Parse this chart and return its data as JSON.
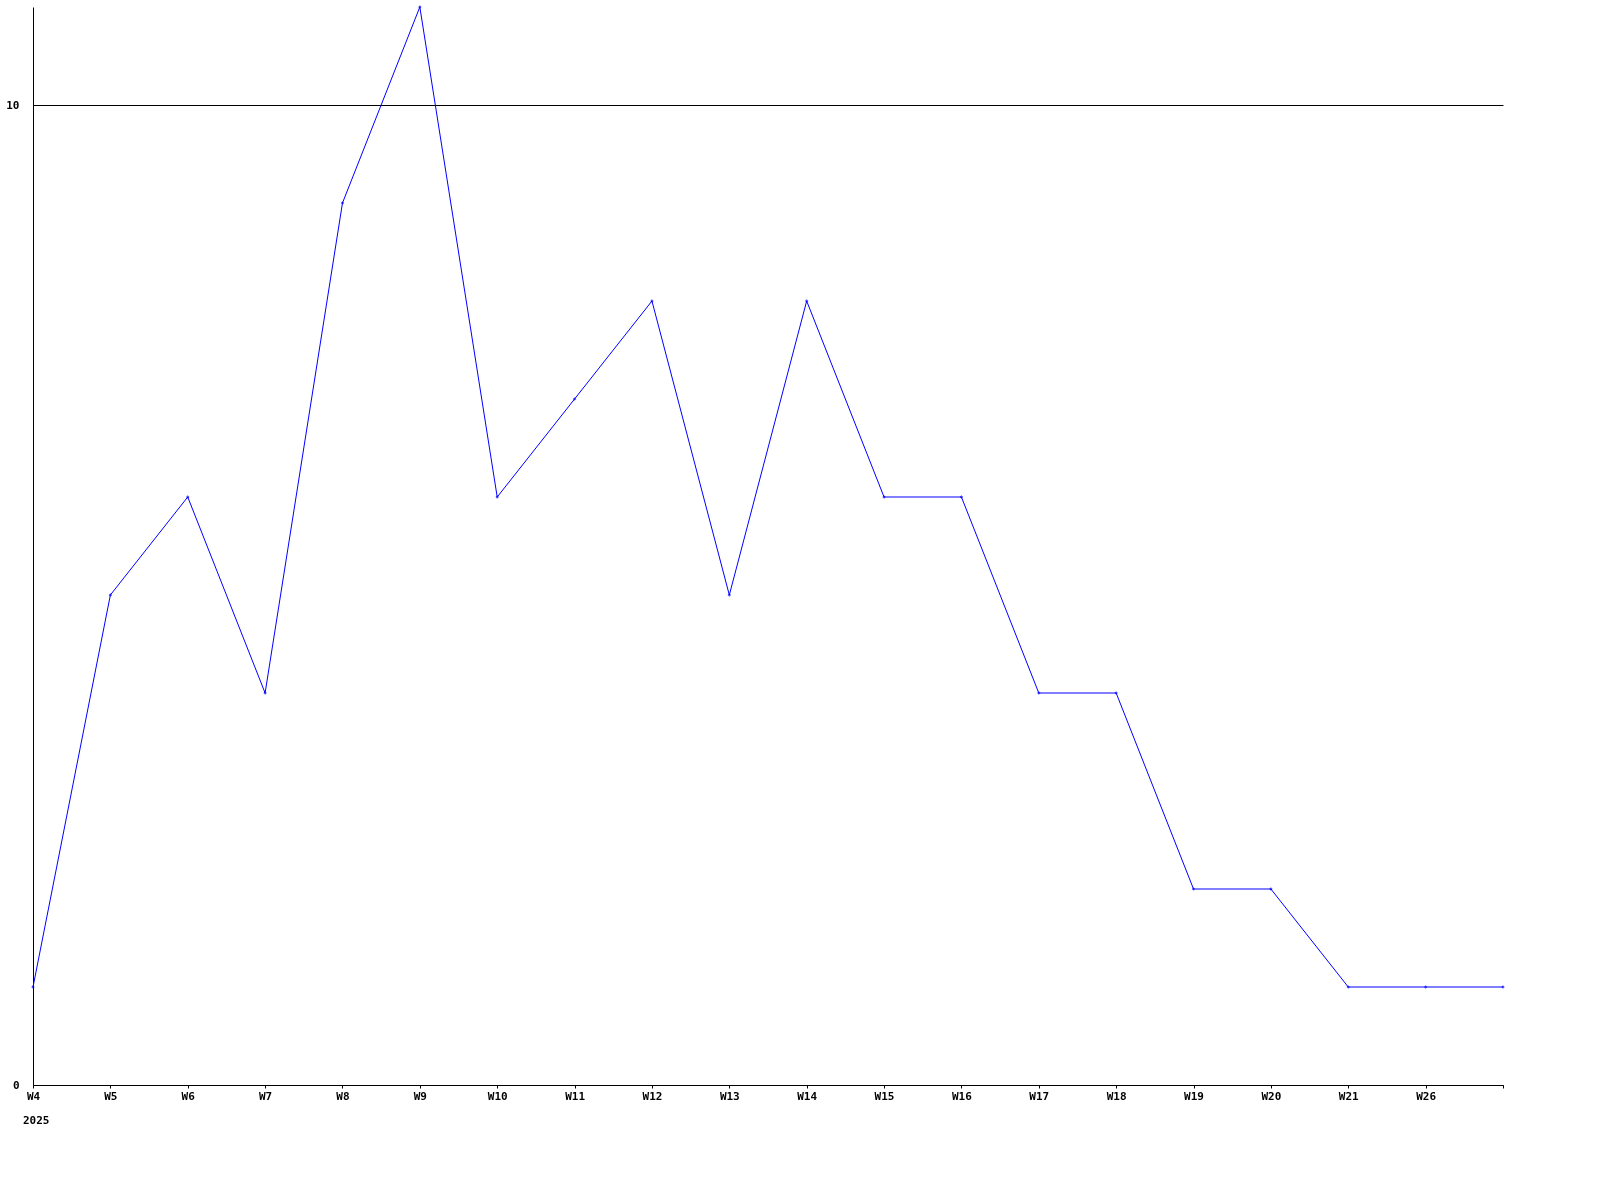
{
  "chart_data": {
    "type": "line",
    "categories": [
      "W4",
      "W5",
      "W6",
      "W7",
      "W8",
      "W9",
      "W10",
      "W11",
      "W12",
      "W13",
      "W14",
      "W15",
      "W16",
      "W17",
      "W18",
      "W19",
      "W20",
      "W21",
      "W26",
      null
    ],
    "series": [
      {
        "color": "#0000ff",
        "values": [
          1,
          5,
          6,
          4,
          9,
          11,
          6,
          7,
          8,
          5,
          8,
          6,
          6,
          4,
          4,
          2,
          2,
          1,
          1,
          1
        ]
      }
    ],
    "ylim": [
      0,
      11
    ],
    "yticks": [
      0,
      10
    ],
    "grid": "y",
    "marker": "diamond",
    "line_style": "solid",
    "annotations": [
      "2025"
    ]
  }
}
